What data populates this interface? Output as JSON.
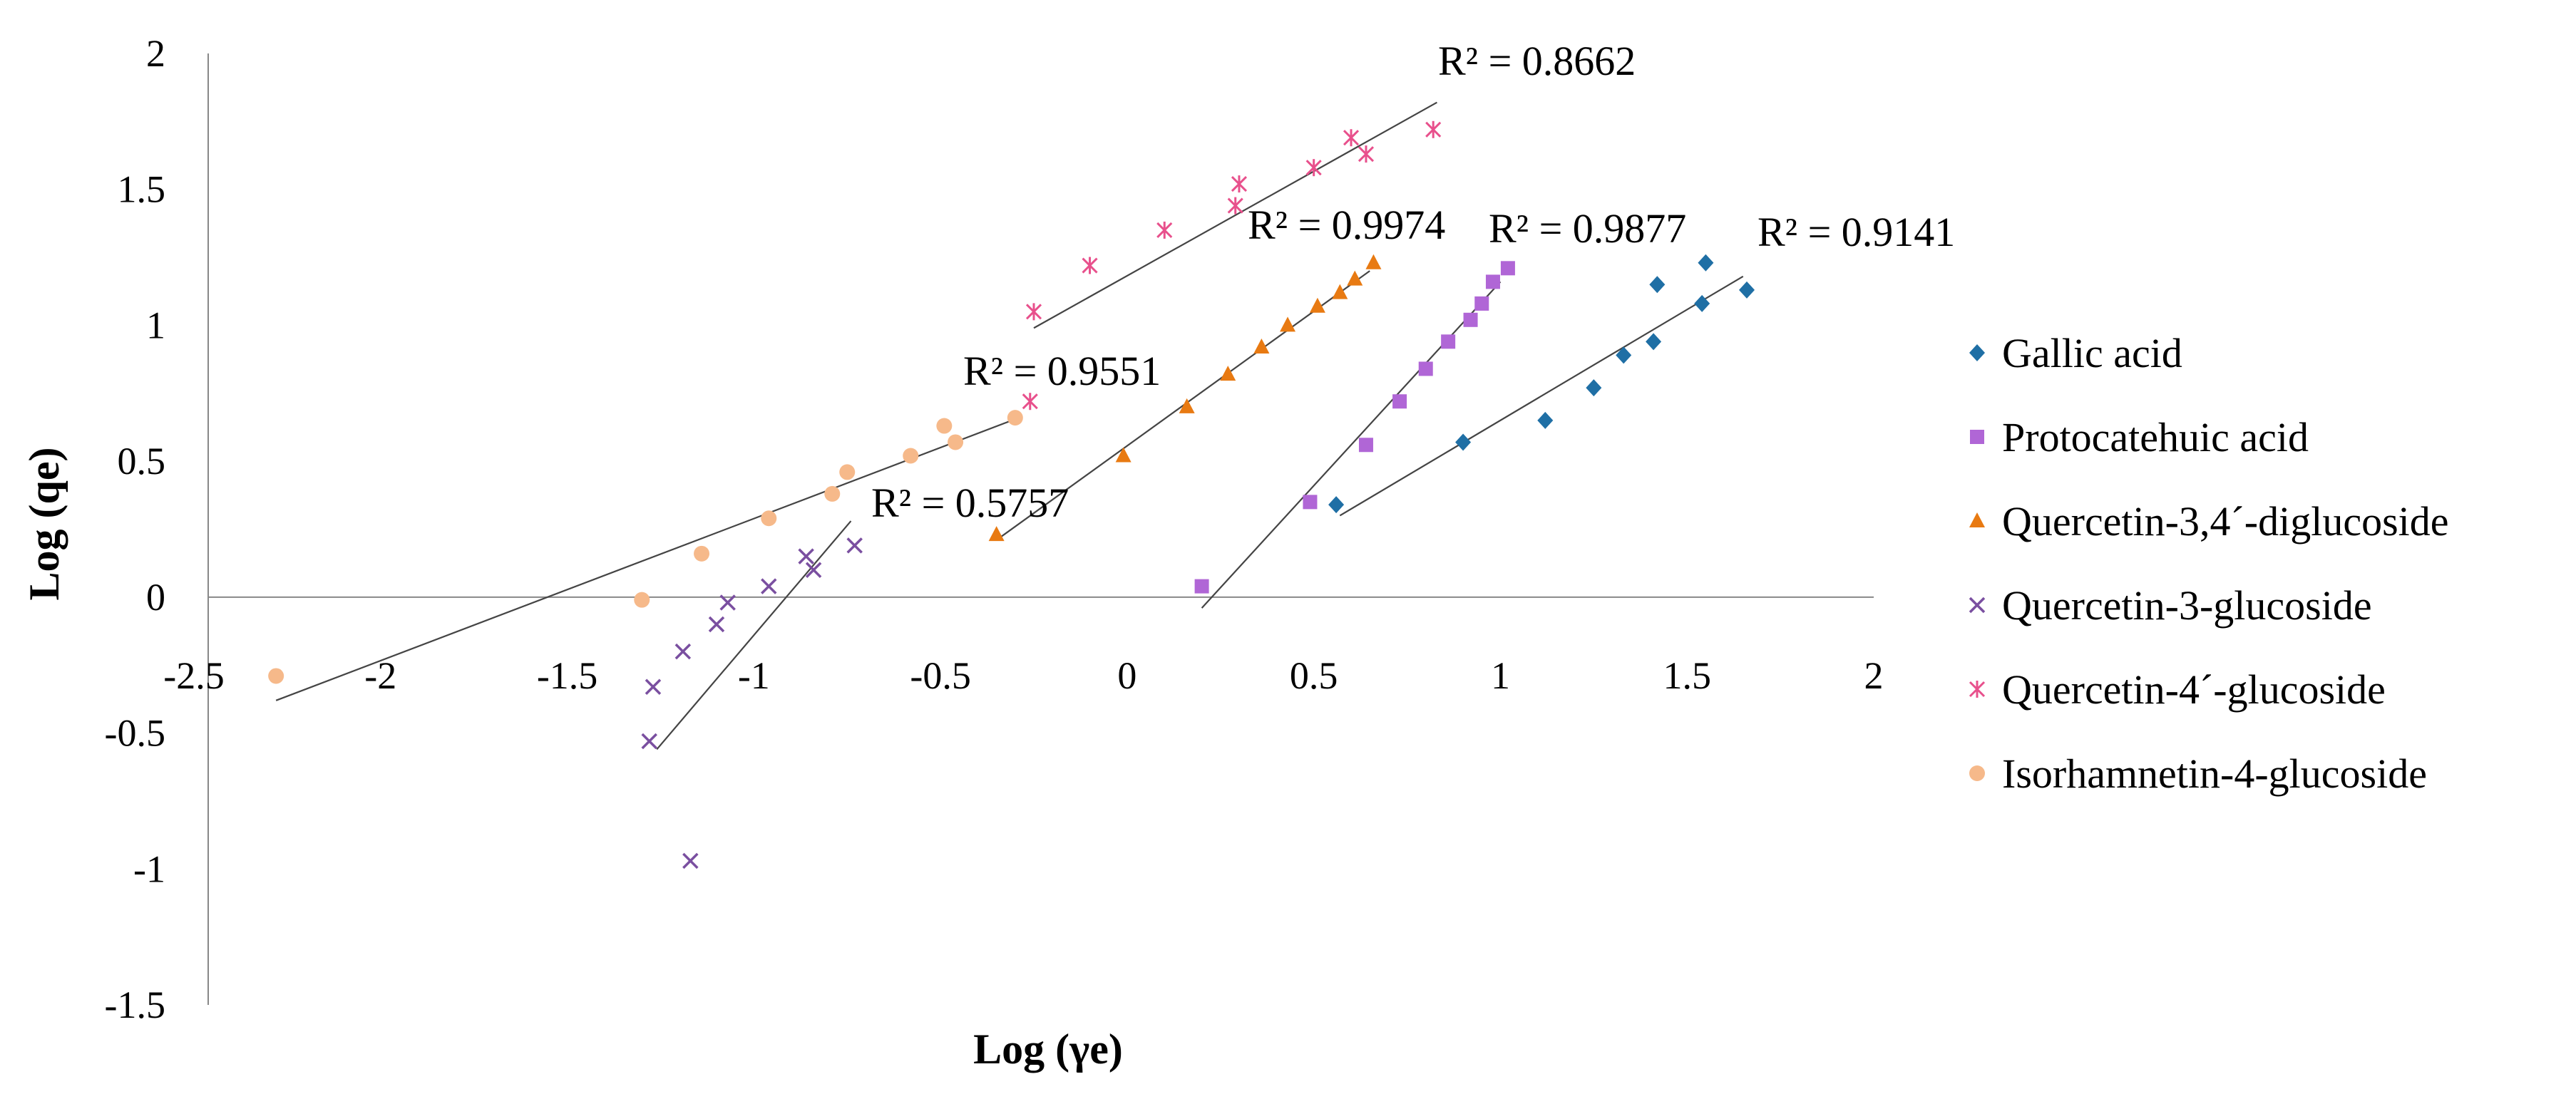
{
  "chart_data": {
    "type": "scatter",
    "title": "",
    "xlabel": "Log (γe)",
    "ylabel": "Log (qe)",
    "xlim": [
      -2.5,
      2
    ],
    "ylim": [
      -1.5,
      2
    ],
    "x_ticks": [
      "-2.5",
      "-2",
      "-1.5",
      "-1",
      "-0.5",
      "0",
      "0.5",
      "1",
      "1.5",
      "2"
    ],
    "x_tick_values": [
      -2.5,
      -2,
      -1.5,
      -1,
      -0.5,
      0,
      0.5,
      1,
      1.5,
      2
    ],
    "y_ticks": [
      "2",
      "1.5",
      "1",
      "0.5",
      "0",
      "-0.5",
      "-1",
      "-1.5"
    ],
    "y_tick_values": [
      2,
      1.5,
      1,
      0.5,
      0,
      -0.5,
      -1,
      -1.5
    ],
    "grid": false,
    "legend_position": "right",
    "series": [
      {
        "name": "Gallic acid",
        "color": "#1f6fa5",
        "marker": "diamond",
        "points": [
          [
            0.56,
            0.34
          ],
          [
            0.9,
            0.57
          ],
          [
            1.12,
            0.65
          ],
          [
            1.25,
            0.77
          ],
          [
            1.33,
            0.89
          ],
          [
            1.41,
            0.94
          ],
          [
            1.42,
            1.15
          ],
          [
            1.54,
            1.08
          ],
          [
            1.55,
            1.23
          ],
          [
            1.66,
            1.13
          ]
        ],
        "trendline": {
          "x": [
            0.57,
            1.65
          ],
          "y": [
            0.3,
            1.18
          ]
        },
        "r2_label": "R² = 0.9141"
      },
      {
        "name": "Protocatehuic acid",
        "color": "#b066d6",
        "marker": "square",
        "points": [
          [
            0.2,
            0.04
          ],
          [
            0.49,
            0.35
          ],
          [
            0.64,
            0.56
          ],
          [
            0.73,
            0.72
          ],
          [
            0.8,
            0.84
          ],
          [
            0.86,
            0.94
          ],
          [
            0.92,
            1.02
          ],
          [
            0.95,
            1.08
          ],
          [
            0.98,
            1.16
          ],
          [
            1.02,
            1.21
          ]
        ],
        "trendline": {
          "x": [
            0.2,
            1.0
          ],
          "y": [
            -0.04,
            1.16
          ]
        },
        "r2_label": "R² = 0.9877"
      },
      {
        "name": "Quercetin-3,4´-diglucoside",
        "color": "#e87a12",
        "marker": "triangle",
        "points": [
          [
            -0.35,
            0.23
          ],
          [
            -0.01,
            0.52
          ],
          [
            0.16,
            0.7
          ],
          [
            0.27,
            0.82
          ],
          [
            0.36,
            0.92
          ],
          [
            0.43,
            1.0
          ],
          [
            0.51,
            1.07
          ],
          [
            0.57,
            1.12
          ],
          [
            0.61,
            1.17
          ],
          [
            0.66,
            1.23
          ]
        ],
        "trendline": {
          "x": [
            -0.34,
            0.65
          ],
          "y": [
            0.22,
            1.2
          ]
        },
        "r2_label": "R² = 0.9974"
      },
      {
        "name": "Quercetin-3-glucoside",
        "color": "#7a4fa0",
        "marker": "x",
        "points": [
          [
            -1.28,
            -0.53
          ],
          [
            -1.27,
            -0.33
          ],
          [
            -1.19,
            -0.2
          ],
          [
            -1.17,
            -0.97
          ],
          [
            -1.1,
            -0.1
          ],
          [
            -1.07,
            -0.02
          ],
          [
            -0.96,
            0.04
          ],
          [
            -0.86,
            0.15
          ],
          [
            -0.84,
            0.1
          ],
          [
            -0.73,
            0.19
          ]
        ],
        "trendline": {
          "x": [
            -1.26,
            -0.74
          ],
          "y": [
            -0.56,
            0.28
          ]
        },
        "r2_label": "R² = 0.5757"
      },
      {
        "name": "Quercetin-4´-glucoside",
        "color": "#e8508c",
        "marker": "asterisk",
        "points": [
          [
            -0.26,
            0.72
          ],
          [
            -0.25,
            1.05
          ],
          [
            -0.1,
            1.22
          ],
          [
            0.1,
            1.35
          ],
          [
            0.29,
            1.44
          ],
          [
            0.3,
            1.52
          ],
          [
            0.5,
            1.58
          ],
          [
            0.6,
            1.69
          ],
          [
            0.64,
            1.63
          ],
          [
            0.82,
            1.72
          ]
        ],
        "trendline": {
          "x": [
            -0.25,
            0.83
          ],
          "y": [
            0.99,
            1.82
          ]
        },
        "r2_label": "R² = 0.8662"
      },
      {
        "name": "Isorhamnetin-4-glucoside",
        "color": "#f6b98a",
        "marker": "circle",
        "points": [
          [
            -2.28,
            -0.29
          ],
          [
            -1.3,
            -0.01
          ],
          [
            -1.14,
            0.16
          ],
          [
            -0.96,
            0.29
          ],
          [
            -0.79,
            0.38
          ],
          [
            -0.75,
            0.46
          ],
          [
            -0.58,
            0.52
          ],
          [
            -0.49,
            0.63
          ],
          [
            -0.46,
            0.57
          ],
          [
            -0.3,
            0.66
          ]
        ],
        "trendline": {
          "x": [
            -2.28,
            -0.29
          ],
          "y": [
            -0.38,
            0.66
          ]
        },
        "r2_label": "R² = 0.9551"
      }
    ]
  }
}
